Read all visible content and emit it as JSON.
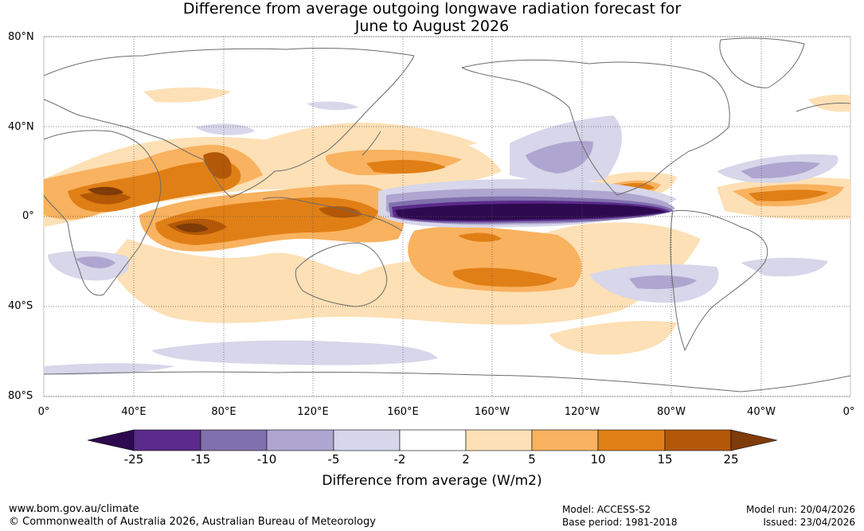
{
  "title": {
    "line1": "Difference from average outgoing longwave radiation forecast for",
    "line2": "June to August 2026"
  },
  "lat_labels": [
    "80°N",
    "40°N",
    "0°",
    "40°S",
    "80°S"
  ],
  "lon_labels": [
    "0°",
    "40°E",
    "80°E",
    "120°E",
    "160°E",
    "160°W",
    "120°W",
    "80°W",
    "40°W",
    "0°"
  ],
  "colorbar": {
    "ticks": [
      "-25",
      "-15",
      "-10",
      "-5",
      "-2",
      "2",
      "5",
      "10",
      "15",
      "25"
    ],
    "colors": [
      "#2d0a4f",
      "#5a2a8a",
      "#8070ad",
      "#aea6d0",
      "#d7d6ea",
      "#ffffff",
      "#fde0b5",
      "#f9b25f",
      "#e07f16",
      "#b35806",
      "#7f3b08"
    ],
    "label": "Difference from average (W/m2)"
  },
  "footer": {
    "website": "www.bom.gov.au/climate",
    "copyright": "© Commonwealth of Australia 2026, Australian Bureau of Meteorology",
    "model": "Model: ACCESS-S2",
    "base_period": "Base period: 1981-2018",
    "model_run": "Model run: 20/04/2026",
    "issued": "Issued: 23/04/2026"
  }
}
